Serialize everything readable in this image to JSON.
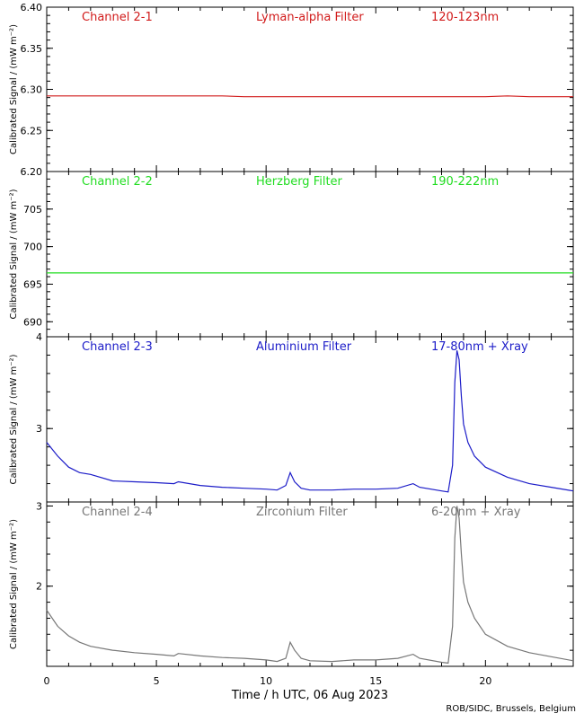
{
  "chart_data": [
    {
      "type": "line",
      "channel": "Channel 2-1",
      "filter": "Lyman-alpha Filter",
      "band": "120-123nm",
      "color": "#d11a1a",
      "ylabel": "Calibrated Signal / (mW m⁻²)",
      "ylim": [
        6.2,
        6.4
      ],
      "yticks": [
        6.2,
        6.25,
        6.3,
        6.35,
        6.4
      ],
      "ytick_labels": [
        "6.20",
        "6.25",
        "6.30",
        "6.35",
        "6.40"
      ],
      "series": [
        {
          "x": [
            0,
            1,
            2,
            3,
            4,
            5,
            6,
            7,
            8,
            9,
            10,
            11,
            12,
            13,
            14,
            15,
            16,
            17,
            18,
            19,
            20,
            21,
            22,
            23,
            24
          ],
          "values": [
            6.292,
            6.292,
            6.292,
            6.292,
            6.292,
            6.292,
            6.292,
            6.292,
            6.292,
            6.291,
            6.291,
            6.291,
            6.291,
            6.291,
            6.291,
            6.291,
            6.291,
            6.291,
            6.291,
            6.291,
            6.291,
            6.292,
            6.291,
            6.291,
            6.291
          ]
        }
      ]
    },
    {
      "type": "line",
      "channel": "Channel 2-2",
      "filter": "Herzberg Filter",
      "band": "190-222nm",
      "color": "#22dd22",
      "ylabel": "Calibrated Signal / (mW m⁻²)",
      "ylim": [
        688,
        710
      ],
      "yticks": [
        690,
        695,
        700,
        705
      ],
      "ytick_labels": [
        "690",
        "695",
        "700",
        "705"
      ],
      "series": [
        {
          "x": [
            0,
            1,
            2,
            3,
            4,
            5,
            6,
            7,
            8,
            9,
            10,
            11,
            12,
            13,
            14,
            15,
            16,
            17,
            18,
            19,
            20,
            21,
            22,
            23,
            24
          ],
          "values": [
            696.5,
            696.5,
            696.5,
            696.5,
            696.5,
            696.5,
            696.5,
            696.5,
            696.5,
            696.5,
            696.5,
            696.5,
            696.5,
            696.5,
            696.5,
            696.5,
            696.5,
            696.5,
            696.5,
            696.5,
            696.5,
            696.5,
            696.5,
            696.5,
            696.5
          ]
        }
      ]
    },
    {
      "type": "line",
      "channel": "Channel 2-3",
      "filter": "Aluminium Filter",
      "band": "17-80nm + Xray",
      "color": "#1c1cc8",
      "ylabel": "Calibrated Signal / (mW m⁻²)",
      "ylim": [
        2.2,
        4.0
      ],
      "yticks": [
        3,
        4
      ],
      "ytick_labels": [
        "3",
        "4"
      ],
      "series": [
        {
          "x": [
            0,
            0.5,
            1,
            1.5,
            2,
            3,
            4,
            5,
            5.8,
            6,
            7,
            8,
            9,
            10,
            10.5,
            10.9,
            11.1,
            11.3,
            11.6,
            12,
            13,
            14,
            15,
            16,
            16.7,
            17,
            18,
            18.3,
            18.5,
            18.6,
            18.7,
            18.8,
            18.9,
            19.0,
            19.2,
            19.5,
            20,
            21,
            22,
            23,
            24
          ],
          "values": [
            2.85,
            2.7,
            2.58,
            2.52,
            2.5,
            2.43,
            2.42,
            2.41,
            2.4,
            2.42,
            2.38,
            2.36,
            2.35,
            2.34,
            2.33,
            2.38,
            2.52,
            2.42,
            2.35,
            2.33,
            2.33,
            2.34,
            2.34,
            2.35,
            2.4,
            2.36,
            2.32,
            2.31,
            2.6,
            3.5,
            3.85,
            3.75,
            3.35,
            3.05,
            2.85,
            2.7,
            2.58,
            2.47,
            2.4,
            2.36,
            2.32
          ]
        }
      ]
    },
    {
      "type": "line",
      "channel": "Channel 2-4",
      "filter": "Zirconium Filter",
      "band": "6-20nm + Xray",
      "color": "#777777",
      "ylabel": "Calibrated Signal / (mW m⁻²)",
      "ylim": [
        1.0,
        3.05
      ],
      "yticks": [
        2,
        3
      ],
      "ytick_labels": [
        "2",
        "3"
      ],
      "series": [
        {
          "x": [
            0,
            0.5,
            1,
            1.5,
            2,
            3,
            4,
            5,
            5.8,
            6,
            7,
            8,
            9,
            10,
            10.5,
            10.9,
            11.1,
            11.3,
            11.6,
            12,
            13,
            14,
            15,
            16,
            16.7,
            17,
            18,
            18.3,
            18.5,
            18.6,
            18.7,
            18.8,
            18.9,
            19.0,
            19.2,
            19.5,
            20,
            21,
            22,
            23,
            24
          ],
          "values": [
            1.7,
            1.5,
            1.38,
            1.3,
            1.25,
            1.2,
            1.17,
            1.15,
            1.13,
            1.16,
            1.13,
            1.11,
            1.1,
            1.08,
            1.06,
            1.1,
            1.3,
            1.2,
            1.1,
            1.07,
            1.06,
            1.08,
            1.08,
            1.1,
            1.15,
            1.1,
            1.05,
            1.04,
            1.5,
            2.6,
            3.0,
            2.85,
            2.4,
            2.05,
            1.8,
            1.6,
            1.4,
            1.25,
            1.17,
            1.12,
            1.07
          ]
        }
      ]
    }
  ],
  "x_axis": {
    "title": "Time / h UTC, 06 Aug 2023",
    "xlim": [
      0,
      24
    ],
    "ticks": [
      0,
      5,
      10,
      15,
      20
    ],
    "tick_labels": [
      "0",
      "5",
      "10",
      "15",
      "20"
    ]
  },
  "credit": "ROB/SIDC, Brussels, Belgium"
}
